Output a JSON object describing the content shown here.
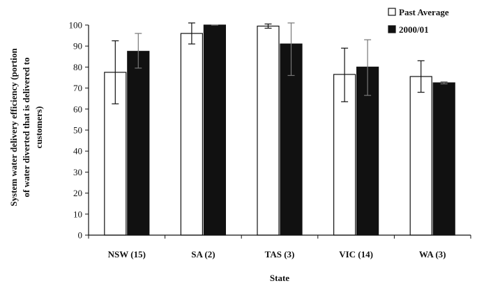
{
  "chart_data": {
    "type": "bar",
    "categories": [
      "NSW (15)",
      "SA (2)",
      "TAS (3)",
      "VIC (14)",
      "WA (3)"
    ],
    "series": [
      {
        "name": "Past Average",
        "values": [
          77.5,
          96,
          99.5,
          76.5,
          75.5
        ],
        "error_low": [
          62.5,
          91,
          98.5,
          63.5,
          68
        ],
        "error_high": [
          92.5,
          101,
          100.5,
          89,
          83
        ],
        "color": "#ffffff"
      },
      {
        "name": "2000/01",
        "values": [
          87.5,
          100,
          91,
          80,
          72.5
        ],
        "error_low": [
          79.5,
          100,
          76,
          66.5,
          72
        ],
        "error_high": [
          96,
          100,
          101,
          93,
          73
        ],
        "color": "#111111"
      }
    ],
    "xlabel": "State",
    "ylabel_lines": [
      "System water delivery efficiency (portion",
      "of water diverted that is delivered to",
      "customers)"
    ],
    "ylim": [
      0,
      100
    ],
    "yticks": [
      "0",
      "10",
      "20",
      "30",
      "40",
      "50",
      "60",
      "70",
      "80",
      "90",
      "100"
    ],
    "legend_position": "top-right",
    "grid": false
  }
}
